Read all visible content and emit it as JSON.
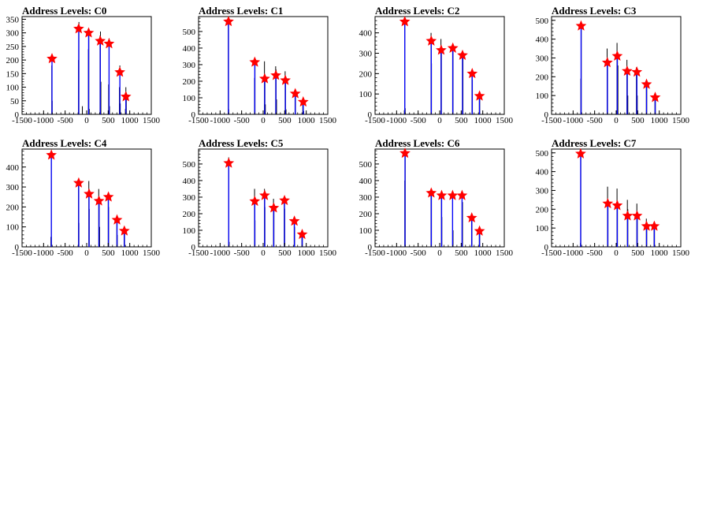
{
  "chart_data": [
    {
      "type": "bar",
      "title": "Address Levels: C0",
      "xlim": [
        -1500,
        1500
      ],
      "ylim": [
        0,
        360
      ],
      "xticks": [
        "-1500",
        "-1000",
        "-500",
        "0",
        "500",
        "1000",
        "1500"
      ],
      "yticks": [
        "0",
        "50",
        "100",
        "150",
        "200",
        "250",
        "300",
        "350"
      ],
      "hist": [
        [
          -810,
          180
        ],
        [
          -800,
          50
        ],
        [
          -190,
          200
        ],
        [
          -180,
          340
        ],
        [
          -100,
          30
        ],
        [
          40,
          240
        ],
        [
          50,
          290
        ],
        [
          60,
          20
        ],
        [
          310,
          290
        ],
        [
          320,
          305
        ],
        [
          330,
          120
        ],
        [
          510,
          110
        ],
        [
          520,
          280
        ],
        [
          530,
          30
        ],
        [
          760,
          100
        ],
        [
          770,
          180
        ],
        [
          780,
          40
        ],
        [
          900,
          20
        ],
        [
          910,
          100
        ],
        [
          920,
          80
        ]
      ],
      "peaks": [
        [
          -805,
          205
        ],
        [
          -185,
          315
        ],
        [
          45,
          300
        ],
        [
          315,
          270
        ],
        [
          520,
          260
        ],
        [
          770,
          155
        ],
        [
          910,
          65
        ]
      ]
    },
    {
      "type": "bar",
      "title": "Address Levels: C1",
      "xlim": [
        -1500,
        1500
      ],
      "ylim": [
        0,
        590
      ],
      "xticks": [
        "-1500",
        "-1000",
        "-500",
        "0",
        "500",
        "1000",
        "1500"
      ],
      "yticks": [
        "0",
        "100",
        "200",
        "300",
        "400",
        "500"
      ],
      "hist": [
        [
          -810,
          560
        ],
        [
          -800,
          30
        ],
        [
          -200,
          220
        ],
        [
          -190,
          300
        ],
        [
          30,
          320
        ],
        [
          40,
          200
        ],
        [
          50,
          60
        ],
        [
          290,
          290
        ],
        [
          300,
          270
        ],
        [
          310,
          90
        ],
        [
          510,
          260
        ],
        [
          520,
          210
        ],
        [
          530,
          30
        ],
        [
          740,
          150
        ],
        [
          750,
          110
        ],
        [
          920,
          90
        ],
        [
          930,
          60
        ],
        [
          940,
          20
        ]
      ],
      "peaks": [
        [
          -805,
          560
        ],
        [
          -195,
          315
        ],
        [
          35,
          215
        ],
        [
          295,
          235
        ],
        [
          515,
          205
        ],
        [
          745,
          125
        ],
        [
          930,
          75
        ]
      ]
    },
    {
      "type": "bar",
      "title": "Address Levels: C2",
      "xlim": [
        -1500,
        1500
      ],
      "ylim": [
        0,
        480
      ],
      "xticks": [
        "-1500",
        "-1000",
        "-500",
        "0",
        "500",
        "1000",
        "1500"
      ],
      "yticks": [
        "0",
        "100",
        "200",
        "300",
        "400"
      ],
      "hist": [
        [
          -820,
          20
        ],
        [
          -810,
          460
        ],
        [
          -800,
          30
        ],
        [
          -200,
          400
        ],
        [
          -190,
          250
        ],
        [
          30,
          370
        ],
        [
          40,
          320
        ],
        [
          300,
          340
        ],
        [
          310,
          310
        ],
        [
          530,
          300
        ],
        [
          540,
          280
        ],
        [
          750,
          210
        ],
        [
          760,
          170
        ],
        [
          920,
          100
        ],
        [
          930,
          90
        ]
      ],
      "peaks": [
        [
          -810,
          455
        ],
        [
          -195,
          360
        ],
        [
          35,
          315
        ],
        [
          305,
          325
        ],
        [
          530,
          290
        ],
        [
          755,
          200
        ],
        [
          925,
          90
        ]
      ]
    },
    {
      "type": "bar",
      "title": "Address Levels: C3",
      "xlim": [
        -1500,
        1500
      ],
      "ylim": [
        0,
        520
      ],
      "xticks": [
        "-1500",
        "-1000",
        "-500",
        "0",
        "500",
        "1000",
        "1500"
      ],
      "yticks": [
        "0",
        "100",
        "200",
        "300",
        "400",
        "500"
      ],
      "hist": [
        [
          -820,
          190
        ],
        [
          -810,
          490
        ],
        [
          -210,
          350
        ],
        [
          -200,
          270
        ],
        [
          20,
          380
        ],
        [
          30,
          300
        ],
        [
          40,
          260
        ],
        [
          250,
          290
        ],
        [
          260,
          230
        ],
        [
          270,
          100
        ],
        [
          470,
          250
        ],
        [
          480,
          210
        ],
        [
          490,
          100
        ],
        [
          700,
          170
        ],
        [
          710,
          150
        ],
        [
          900,
          100
        ],
        [
          910,
          80
        ]
      ],
      "peaks": [
        [
          -815,
          470
        ],
        [
          -205,
          275
        ],
        [
          25,
          310
        ],
        [
          255,
          230
        ],
        [
          480,
          225
        ],
        [
          705,
          160
        ],
        [
          905,
          90
        ]
      ]
    },
    {
      "type": "bar",
      "title": "Address Levels: C4",
      "xlim": [
        -1500,
        1500
      ],
      "ylim": [
        0,
        490
      ],
      "xticks": [
        "-1500",
        "-1000",
        "-500",
        "0",
        "500",
        "1000",
        "1500"
      ],
      "yticks": [
        "0",
        "100",
        "200",
        "300",
        "400"
      ],
      "hist": [
        [
          -830,
          50
        ],
        [
          -820,
          470
        ],
        [
          -190,
          320
        ],
        [
          -180,
          120
        ],
        [
          50,
          330
        ],
        [
          60,
          190
        ],
        [
          280,
          290
        ],
        [
          290,
          240
        ],
        [
          300,
          100
        ],
        [
          500,
          260
        ],
        [
          510,
          200
        ],
        [
          700,
          150
        ],
        [
          710,
          60
        ],
        [
          870,
          100
        ],
        [
          880,
          70
        ]
      ],
      "peaks": [
        [
          -820,
          460
        ],
        [
          -185,
          320
        ],
        [
          55,
          265
        ],
        [
          285,
          230
        ],
        [
          505,
          250
        ],
        [
          705,
          135
        ],
        [
          875,
          80
        ]
      ]
    },
    {
      "type": "bar",
      "title": "Address Levels: C5",
      "xlim": [
        -1500,
        1500
      ],
      "ylim": [
        0,
        590
      ],
      "xticks": [
        "-1500",
        "-1000",
        "-500",
        "0",
        "500",
        "1000",
        "1500"
      ],
      "yticks": [
        "0",
        "100",
        "200",
        "300",
        "400",
        "500"
      ],
      "hist": [
        [
          -800,
          540
        ],
        [
          -790,
          30
        ],
        [
          -200,
          350
        ],
        [
          -190,
          160
        ],
        [
          30,
          350
        ],
        [
          40,
          240
        ],
        [
          240,
          290
        ],
        [
          250,
          220
        ],
        [
          490,
          300
        ],
        [
          500,
          230
        ],
        [
          720,
          180
        ],
        [
          730,
          120
        ],
        [
          900,
          100
        ],
        [
          910,
          70
        ]
      ],
      "peaks": [
        [
          -800,
          505
        ],
        [
          -195,
          275
        ],
        [
          35,
          310
        ],
        [
          245,
          235
        ],
        [
          495,
          280
        ],
        [
          725,
          155
        ],
        [
          905,
          75
        ]
      ]
    },
    {
      "type": "bar",
      "title": "Address Levels: C6",
      "xlim": [
        -1500,
        1500
      ],
      "ylim": [
        0,
        590
      ],
      "xticks": [
        "-1500",
        "-1000",
        "-500",
        "0",
        "500",
        "1000",
        "1500"
      ],
      "yticks": [
        "0",
        "100",
        "200",
        "300",
        "400",
        "500"
      ],
      "hist": [
        [
          -810,
          400
        ],
        [
          -800,
          570
        ],
        [
          -200,
          340
        ],
        [
          -190,
          300
        ],
        [
          40,
          320
        ],
        [
          50,
          180
        ],
        [
          300,
          320
        ],
        [
          310,
          100
        ],
        [
          520,
          330
        ],
        [
          530,
          270
        ],
        [
          740,
          190
        ],
        [
          750,
          160
        ],
        [
          920,
          100
        ],
        [
          930,
          80
        ]
      ],
      "peaks": [
        [
          -805,
          565
        ],
        [
          -195,
          325
        ],
        [
          45,
          310
        ],
        [
          300,
          310
        ],
        [
          520,
          310
        ],
        [
          745,
          175
        ],
        [
          925,
          95
        ]
      ]
    },
    {
      "type": "bar",
      "title": "Address Levels: C7",
      "xlim": [
        -1500,
        1500
      ],
      "ylim": [
        0,
        520
      ],
      "xticks": [
        "-1500",
        "-1000",
        "-500",
        "0",
        "500",
        "1000",
        "1500"
      ],
      "yticks": [
        "0",
        "100",
        "200",
        "300",
        "400",
        "500"
      ],
      "hist": [
        [
          -830,
          20
        ],
        [
          -820,
          500
        ],
        [
          -200,
          320
        ],
        [
          -190,
          240
        ],
        [
          20,
          310
        ],
        [
          30,
          220
        ],
        [
          260,
          250
        ],
        [
          270,
          200
        ],
        [
          480,
          230
        ],
        [
          490,
          180
        ],
        [
          700,
          150
        ],
        [
          710,
          110
        ],
        [
          880,
          120
        ],
        [
          890,
          100
        ]
      ],
      "peaks": [
        [
          -825,
          495
        ],
        [
          -195,
          230
        ],
        [
          25,
          220
        ],
        [
          265,
          165
        ],
        [
          485,
          165
        ],
        [
          705,
          110
        ],
        [
          885,
          110
        ]
      ]
    }
  ]
}
